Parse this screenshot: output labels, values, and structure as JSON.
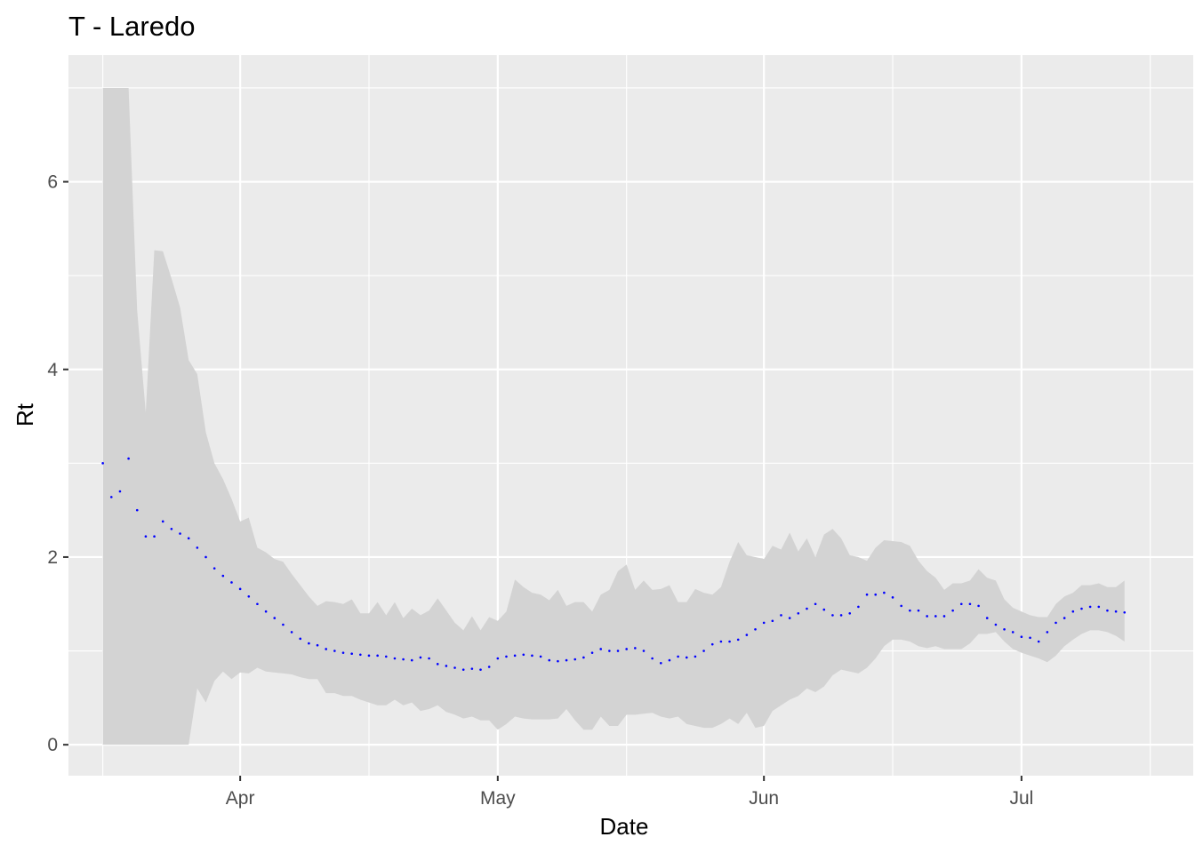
{
  "chart_data": {
    "type": "area",
    "title": "T - Laredo",
    "xlabel": "Date",
    "ylabel": "Rt",
    "x_start": "2020-03-16",
    "x_end": "2020-07-15",
    "xlim": [
      "2020-03-12",
      "2020-07-21"
    ],
    "ylim": [
      -0.33,
      7.35
    ],
    "x_ticks": [
      {
        "date": "2020-04-01",
        "label": "Apr"
      },
      {
        "date": "2020-05-01",
        "label": "May"
      },
      {
        "date": "2020-06-01",
        "label": "Jun"
      },
      {
        "date": "2020-07-01",
        "label": "Jul"
      }
    ],
    "x_minor_ticks": [
      "2020-03-16",
      "2020-04-16",
      "2020-05-16",
      "2020-06-16",
      "2020-07-16"
    ],
    "y_ticks": [
      0,
      2,
      4,
      6
    ],
    "y_minor_ticks": [
      1,
      3,
      5,
      7
    ],
    "grid": true,
    "colors": {
      "panel": "#ebebeb",
      "grid": "#ffffff",
      "ribbon": "#d3d3d3",
      "point": "#0000ff"
    },
    "series": [
      {
        "role": "estimate",
        "mark": "point",
        "values": [
          3.0,
          2.64,
          2.7,
          3.05,
          2.5,
          2.22,
          2.22,
          2.38,
          2.3,
          2.25,
          2.2,
          2.1,
          2.0,
          1.88,
          1.8,
          1.73,
          1.66,
          1.58,
          1.5,
          1.42,
          1.35,
          1.28,
          1.2,
          1.13,
          1.08,
          1.06,
          1.02,
          1.0,
          0.98,
          0.97,
          0.96,
          0.95,
          0.95,
          0.94,
          0.92,
          0.91,
          0.9,
          0.93,
          0.92,
          0.86,
          0.84,
          0.82,
          0.8,
          0.81,
          0.8,
          0.83,
          0.92,
          0.94,
          0.95,
          0.96,
          0.95,
          0.94,
          0.9,
          0.89,
          0.9,
          0.91,
          0.93,
          0.98,
          1.02,
          1.0,
          1.0,
          1.02,
          1.03,
          1.0,
          0.92,
          0.87,
          0.9,
          0.94,
          0.93,
          0.94,
          1.0,
          1.07,
          1.1,
          1.1,
          1.12,
          1.17,
          1.23,
          1.3,
          1.32,
          1.38,
          1.35,
          1.4,
          1.45,
          1.5,
          1.44,
          1.38,
          1.38,
          1.4,
          1.47,
          1.6,
          1.6,
          1.62,
          1.57,
          1.48,
          1.43,
          1.43,
          1.37,
          1.37,
          1.37,
          1.43,
          1.5,
          1.5,
          1.48,
          1.35,
          1.28,
          1.23,
          1.2,
          1.15,
          1.14,
          1.1,
          1.2,
          1.3,
          1.35,
          1.42,
          1.45,
          1.47,
          1.47,
          1.43,
          1.42,
          1.41
        ]
      },
      {
        "role": "interval",
        "mark": "ribbon",
        "lower": [
          0.0,
          0.0,
          0.0,
          0.0,
          0.0,
          0.0,
          0.0,
          0.0,
          0.0,
          0.0,
          0.0,
          0.6,
          0.45,
          0.68,
          0.78,
          0.7,
          0.77,
          0.76,
          0.82,
          0.78,
          0.77,
          0.76,
          0.75,
          0.72,
          0.7,
          0.7,
          0.55,
          0.55,
          0.52,
          0.52,
          0.48,
          0.45,
          0.42,
          0.42,
          0.48,
          0.42,
          0.45,
          0.36,
          0.38,
          0.42,
          0.35,
          0.32,
          0.28,
          0.3,
          0.26,
          0.26,
          0.16,
          0.22,
          0.3,
          0.28,
          0.27,
          0.27,
          0.27,
          0.28,
          0.38,
          0.26,
          0.16,
          0.16,
          0.3,
          0.2,
          0.2,
          0.32,
          0.32,
          0.33,
          0.34,
          0.3,
          0.28,
          0.3,
          0.22,
          0.2,
          0.18,
          0.18,
          0.22,
          0.28,
          0.22,
          0.34,
          0.18,
          0.2,
          0.36,
          0.42,
          0.48,
          0.52,
          0.6,
          0.56,
          0.62,
          0.74,
          0.8,
          0.78,
          0.76,
          0.82,
          0.92,
          1.05,
          1.12,
          1.12,
          1.1,
          1.05,
          1.03,
          1.05,
          1.02,
          1.02,
          1.02,
          1.08,
          1.18,
          1.18,
          1.2,
          1.1,
          1.02,
          0.98,
          0.95,
          0.92,
          0.88,
          0.95,
          1.05,
          1.12,
          1.18,
          1.22,
          1.22,
          1.2,
          1.16,
          1.1
        ],
        "upper": [
          7.0,
          7.0,
          7.0,
          7.0,
          4.63,
          3.54,
          5.27,
          5.26,
          4.97,
          4.66,
          4.1,
          3.95,
          3.33,
          3.0,
          2.83,
          2.62,
          2.38,
          2.42,
          2.1,
          2.05,
          1.98,
          1.95,
          1.82,
          1.7,
          1.58,
          1.48,
          1.53,
          1.52,
          1.5,
          1.55,
          1.4,
          1.4,
          1.52,
          1.38,
          1.52,
          1.35,
          1.45,
          1.38,
          1.43,
          1.56,
          1.43,
          1.3,
          1.22,
          1.37,
          1.22,
          1.36,
          1.32,
          1.42,
          1.76,
          1.68,
          1.62,
          1.6,
          1.54,
          1.65,
          1.48,
          1.52,
          1.52,
          1.42,
          1.6,
          1.65,
          1.85,
          1.92,
          1.65,
          1.75,
          1.65,
          1.66,
          1.7,
          1.52,
          1.52,
          1.66,
          1.62,
          1.6,
          1.68,
          1.95,
          2.16,
          2.02,
          2.0,
          1.98,
          2.12,
          2.08,
          2.26,
          2.06,
          2.2,
          2.0,
          2.24,
          2.3,
          2.2,
          2.02,
          2.0,
          1.96,
          2.1,
          2.18,
          2.17,
          2.16,
          2.12,
          1.96,
          1.85,
          1.78,
          1.65,
          1.72,
          1.72,
          1.75,
          1.87,
          1.78,
          1.75,
          1.55,
          1.46,
          1.42,
          1.38,
          1.36,
          1.36,
          1.5,
          1.58,
          1.62,
          1.7,
          1.7,
          1.72,
          1.68,
          1.68,
          1.75
        ]
      }
    ]
  }
}
